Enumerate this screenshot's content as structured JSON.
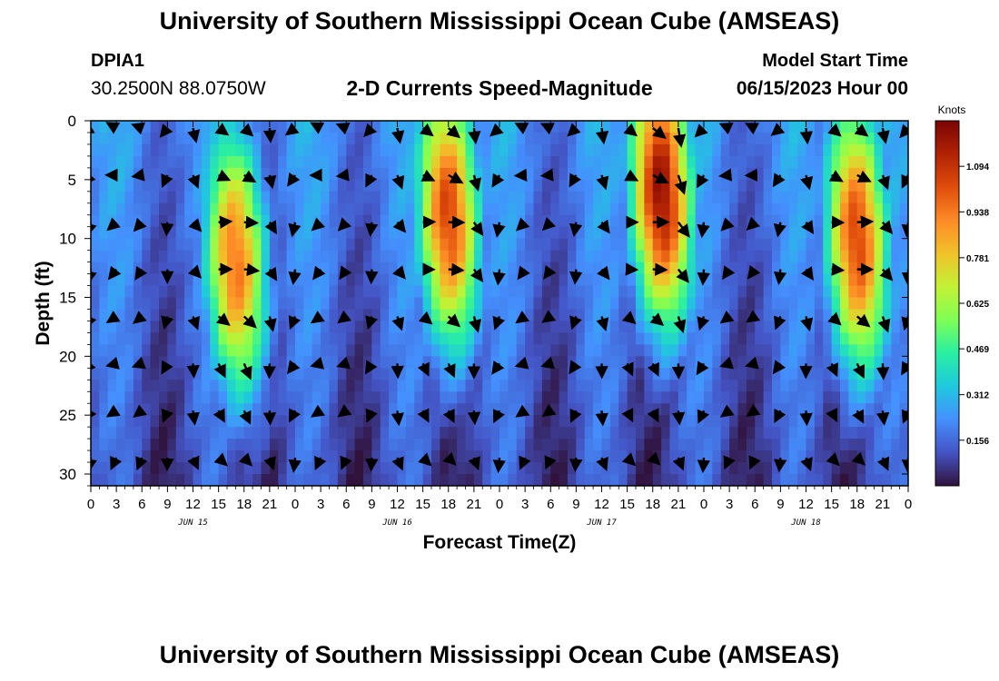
{
  "header": {
    "title": "University of Southern Mississippi Ocean Cube (AMSEAS)",
    "station_id": "DPIA1",
    "station_coords": "30.2500N  88.0750W",
    "plot_title": "2-D Currents Speed-Magnitude",
    "model_label": "Model Start Time",
    "model_date": "06/15/2023 Hour 00"
  },
  "footer": {
    "title": "University of Southern Mississippi Ocean Cube (AMSEAS)"
  },
  "chart_data": {
    "type": "heatmap",
    "title": "2-D Currents Speed-Magnitude",
    "xlabel": "Forecast Time(Z)",
    "ylabel": "Depth (ft)",
    "x_tick_labels": [
      "0",
      "3",
      "6",
      "9",
      "12",
      "15",
      "18",
      "21",
      "0",
      "3",
      "6",
      "9",
      "12",
      "15",
      "18",
      "21",
      "0",
      "3",
      "6",
      "9",
      "12",
      "15",
      "18",
      "21",
      "0",
      "3",
      "6",
      "9",
      "12",
      "15",
      "18",
      "21",
      "0"
    ],
    "date_labels": [
      {
        "label": "JUN 15",
        "hour": 12
      },
      {
        "label": "JUN 16",
        "hour": 36
      },
      {
        "label": "JUN 17",
        "hour": 60
      },
      {
        "label": "JUN 18",
        "hour": 84
      }
    ],
    "xlim": [
      0,
      96
    ],
    "y_ticks": [
      0,
      5,
      10,
      15,
      20,
      25,
      30
    ],
    "ylim": [
      0,
      31
    ],
    "colorbar": {
      "unit": "Knots",
      "ticks": [
        "1.094",
        "0.938",
        "0.781",
        "0.625",
        "0.469",
        "0.312",
        "0.156"
      ],
      "tick_values": [
        1.094,
        0.938,
        0.781,
        0.625,
        0.469,
        0.312,
        0.156
      ],
      "range": [
        0,
        1.25
      ],
      "colors": [
        "#30123b",
        "#4454c4",
        "#4490fe",
        "#1fc9dd",
        "#29efa2",
        "#7eff55",
        "#c3f134",
        "#f0c22a",
        "#fd8a26",
        "#e04d0b",
        "#b12204",
        "#7a0403"
      ]
    },
    "speed_peaks_knots": [
      {
        "hour": 17,
        "depth_ft": 12,
        "speed": 0.95
      },
      {
        "hour": 42,
        "depth_ft": 8,
        "speed": 1.05
      },
      {
        "hour": 67,
        "depth_ft": 6,
        "speed": 1.2
      },
      {
        "hour": 90,
        "depth_ft": 10,
        "speed": 1.05
      }
    ],
    "vector_grid": {
      "hour_step": 3,
      "depths_ft": [
        0,
        4,
        8,
        12,
        16,
        20,
        24,
        28
      ]
    }
  }
}
